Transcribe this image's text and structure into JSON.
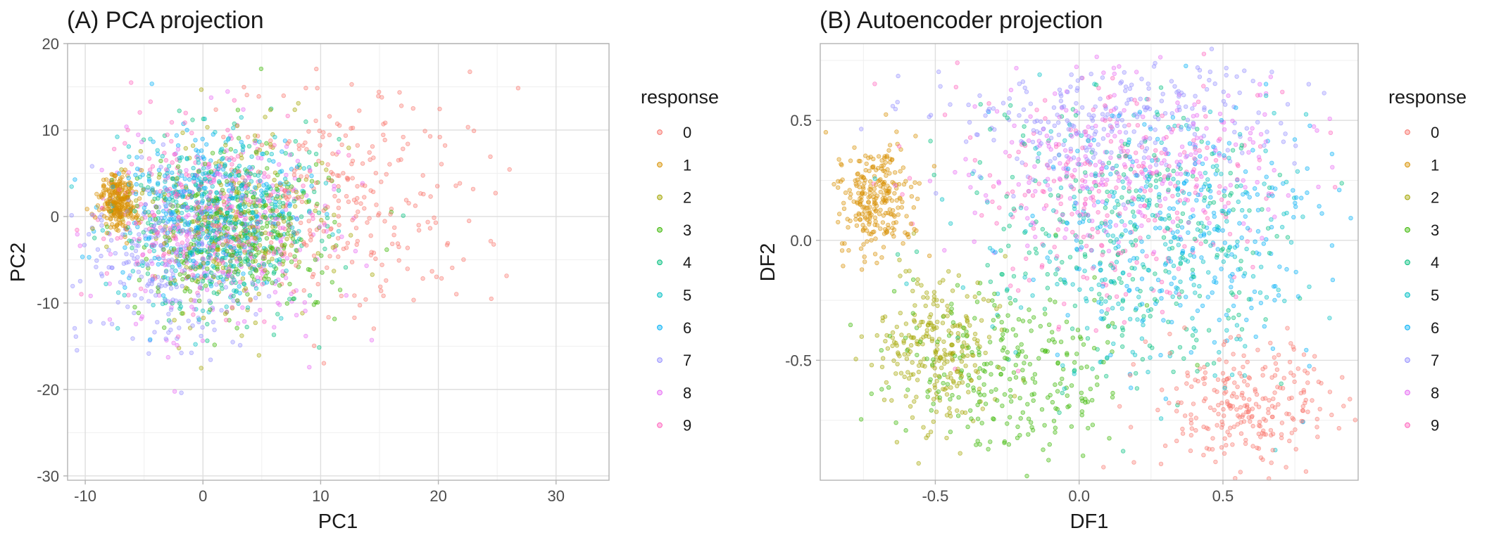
{
  "colors": [
    "#F8766D",
    "#D89000",
    "#A3A500",
    "#39B600",
    "#00BF7D",
    "#00BFC4",
    "#00B0F6",
    "#9590FF",
    "#E76BF3",
    "#FF62BC"
  ],
  "chart_data": [
    {
      "type": "scatter",
      "title": "(A) PCA projection",
      "xlabel": "PC1",
      "ylabel": "PC2",
      "xlim": [
        -11.5,
        34.5
      ],
      "ylim": [
        -30.5,
        20
      ],
      "xticks": [
        -10,
        0,
        10,
        20,
        30
      ],
      "xtick_labels": [
        "-10",
        "0",
        "10",
        "20",
        "30"
      ],
      "yticks": [
        -30,
        -20,
        -10,
        0,
        10,
        20
      ],
      "ytick_labels": [
        "-30",
        "-20",
        "-10",
        "0",
        "10",
        "20"
      ],
      "grid": true,
      "legend": {
        "title": "response",
        "position": "right",
        "labels": [
          "0",
          "1",
          "2",
          "3",
          "4",
          "5",
          "6",
          "7",
          "8",
          "9"
        ]
      },
      "series": [
        {
          "name": "0",
          "center": [
            13,
            2
          ],
          "spread": [
            5.5,
            6.5
          ]
        },
        {
          "name": "1",
          "center": [
            -7.2,
            1.5
          ],
          "spread": [
            0.8,
            1.6
          ]
        },
        {
          "name": "2",
          "center": [
            2,
            -1
          ],
          "spread": [
            4,
            5.5
          ]
        },
        {
          "name": "3",
          "center": [
            3,
            -2
          ],
          "spread": [
            4,
            5
          ]
        },
        {
          "name": "4",
          "center": [
            2,
            -1
          ],
          "spread": [
            4,
            5
          ]
        },
        {
          "name": "5",
          "center": [
            1,
            0
          ],
          "spread": [
            4,
            5
          ]
        },
        {
          "name": "6",
          "center": [
            0,
            1
          ],
          "spread": [
            4,
            5
          ]
        },
        {
          "name": "7",
          "center": [
            -3,
            -5
          ],
          "spread": [
            3.5,
            5
          ]
        },
        {
          "name": "8",
          "center": [
            2,
            -2
          ],
          "spread": [
            5,
            6
          ]
        },
        {
          "name": "9",
          "center": [
            0,
            0
          ],
          "spread": [
            4,
            5
          ]
        }
      ]
    },
    {
      "type": "scatter",
      "title": "(B) Autoencoder projection",
      "xlabel": "DF1",
      "ylabel": "DF2",
      "xlim": [
        -0.9,
        0.97
      ],
      "ylim": [
        -1.0,
        0.82
      ],
      "xticks": [
        -0.5,
        0.0,
        0.5
      ],
      "xtick_labels": [
        "-0.5",
        "0.0",
        "0.5"
      ],
      "yticks": [
        -0.5,
        0.0,
        0.5
      ],
      "ytick_labels": [
        "-0.5",
        "0.0",
        "0.5"
      ],
      "grid": true,
      "legend": {
        "title": "response",
        "position": "right",
        "labels": [
          "0",
          "1",
          "2",
          "3",
          "4",
          "5",
          "6",
          "7",
          "8",
          "9"
        ]
      },
      "series": [
        {
          "name": "0",
          "center": [
            0.58,
            -0.68
          ],
          "spread": [
            0.14,
            0.12
          ]
        },
        {
          "name": "1",
          "center": [
            -0.7,
            0.17
          ],
          "spread": [
            0.07,
            0.12
          ]
        },
        {
          "name": "2",
          "center": [
            -0.5,
            -0.45
          ],
          "spread": [
            0.1,
            0.15
          ]
        },
        {
          "name": "3",
          "center": [
            -0.25,
            -0.55
          ],
          "spread": [
            0.2,
            0.18
          ]
        },
        {
          "name": "4",
          "center": [
            0.2,
            0.0
          ],
          "spread": [
            0.28,
            0.3
          ]
        },
        {
          "name": "5",
          "center": [
            0.25,
            0.0
          ],
          "spread": [
            0.28,
            0.28
          ]
        },
        {
          "name": "6",
          "center": [
            0.4,
            0.05
          ],
          "spread": [
            0.25,
            0.25
          ]
        },
        {
          "name": "7",
          "center": [
            0.1,
            0.5
          ],
          "spread": [
            0.3,
            0.12
          ]
        },
        {
          "name": "8",
          "center": [
            0.2,
            0.3
          ],
          "spread": [
            0.3,
            0.2
          ]
        },
        {
          "name": "9",
          "center": [
            0.1,
            0.2
          ],
          "spread": [
            0.3,
            0.25
          ]
        }
      ]
    }
  ]
}
